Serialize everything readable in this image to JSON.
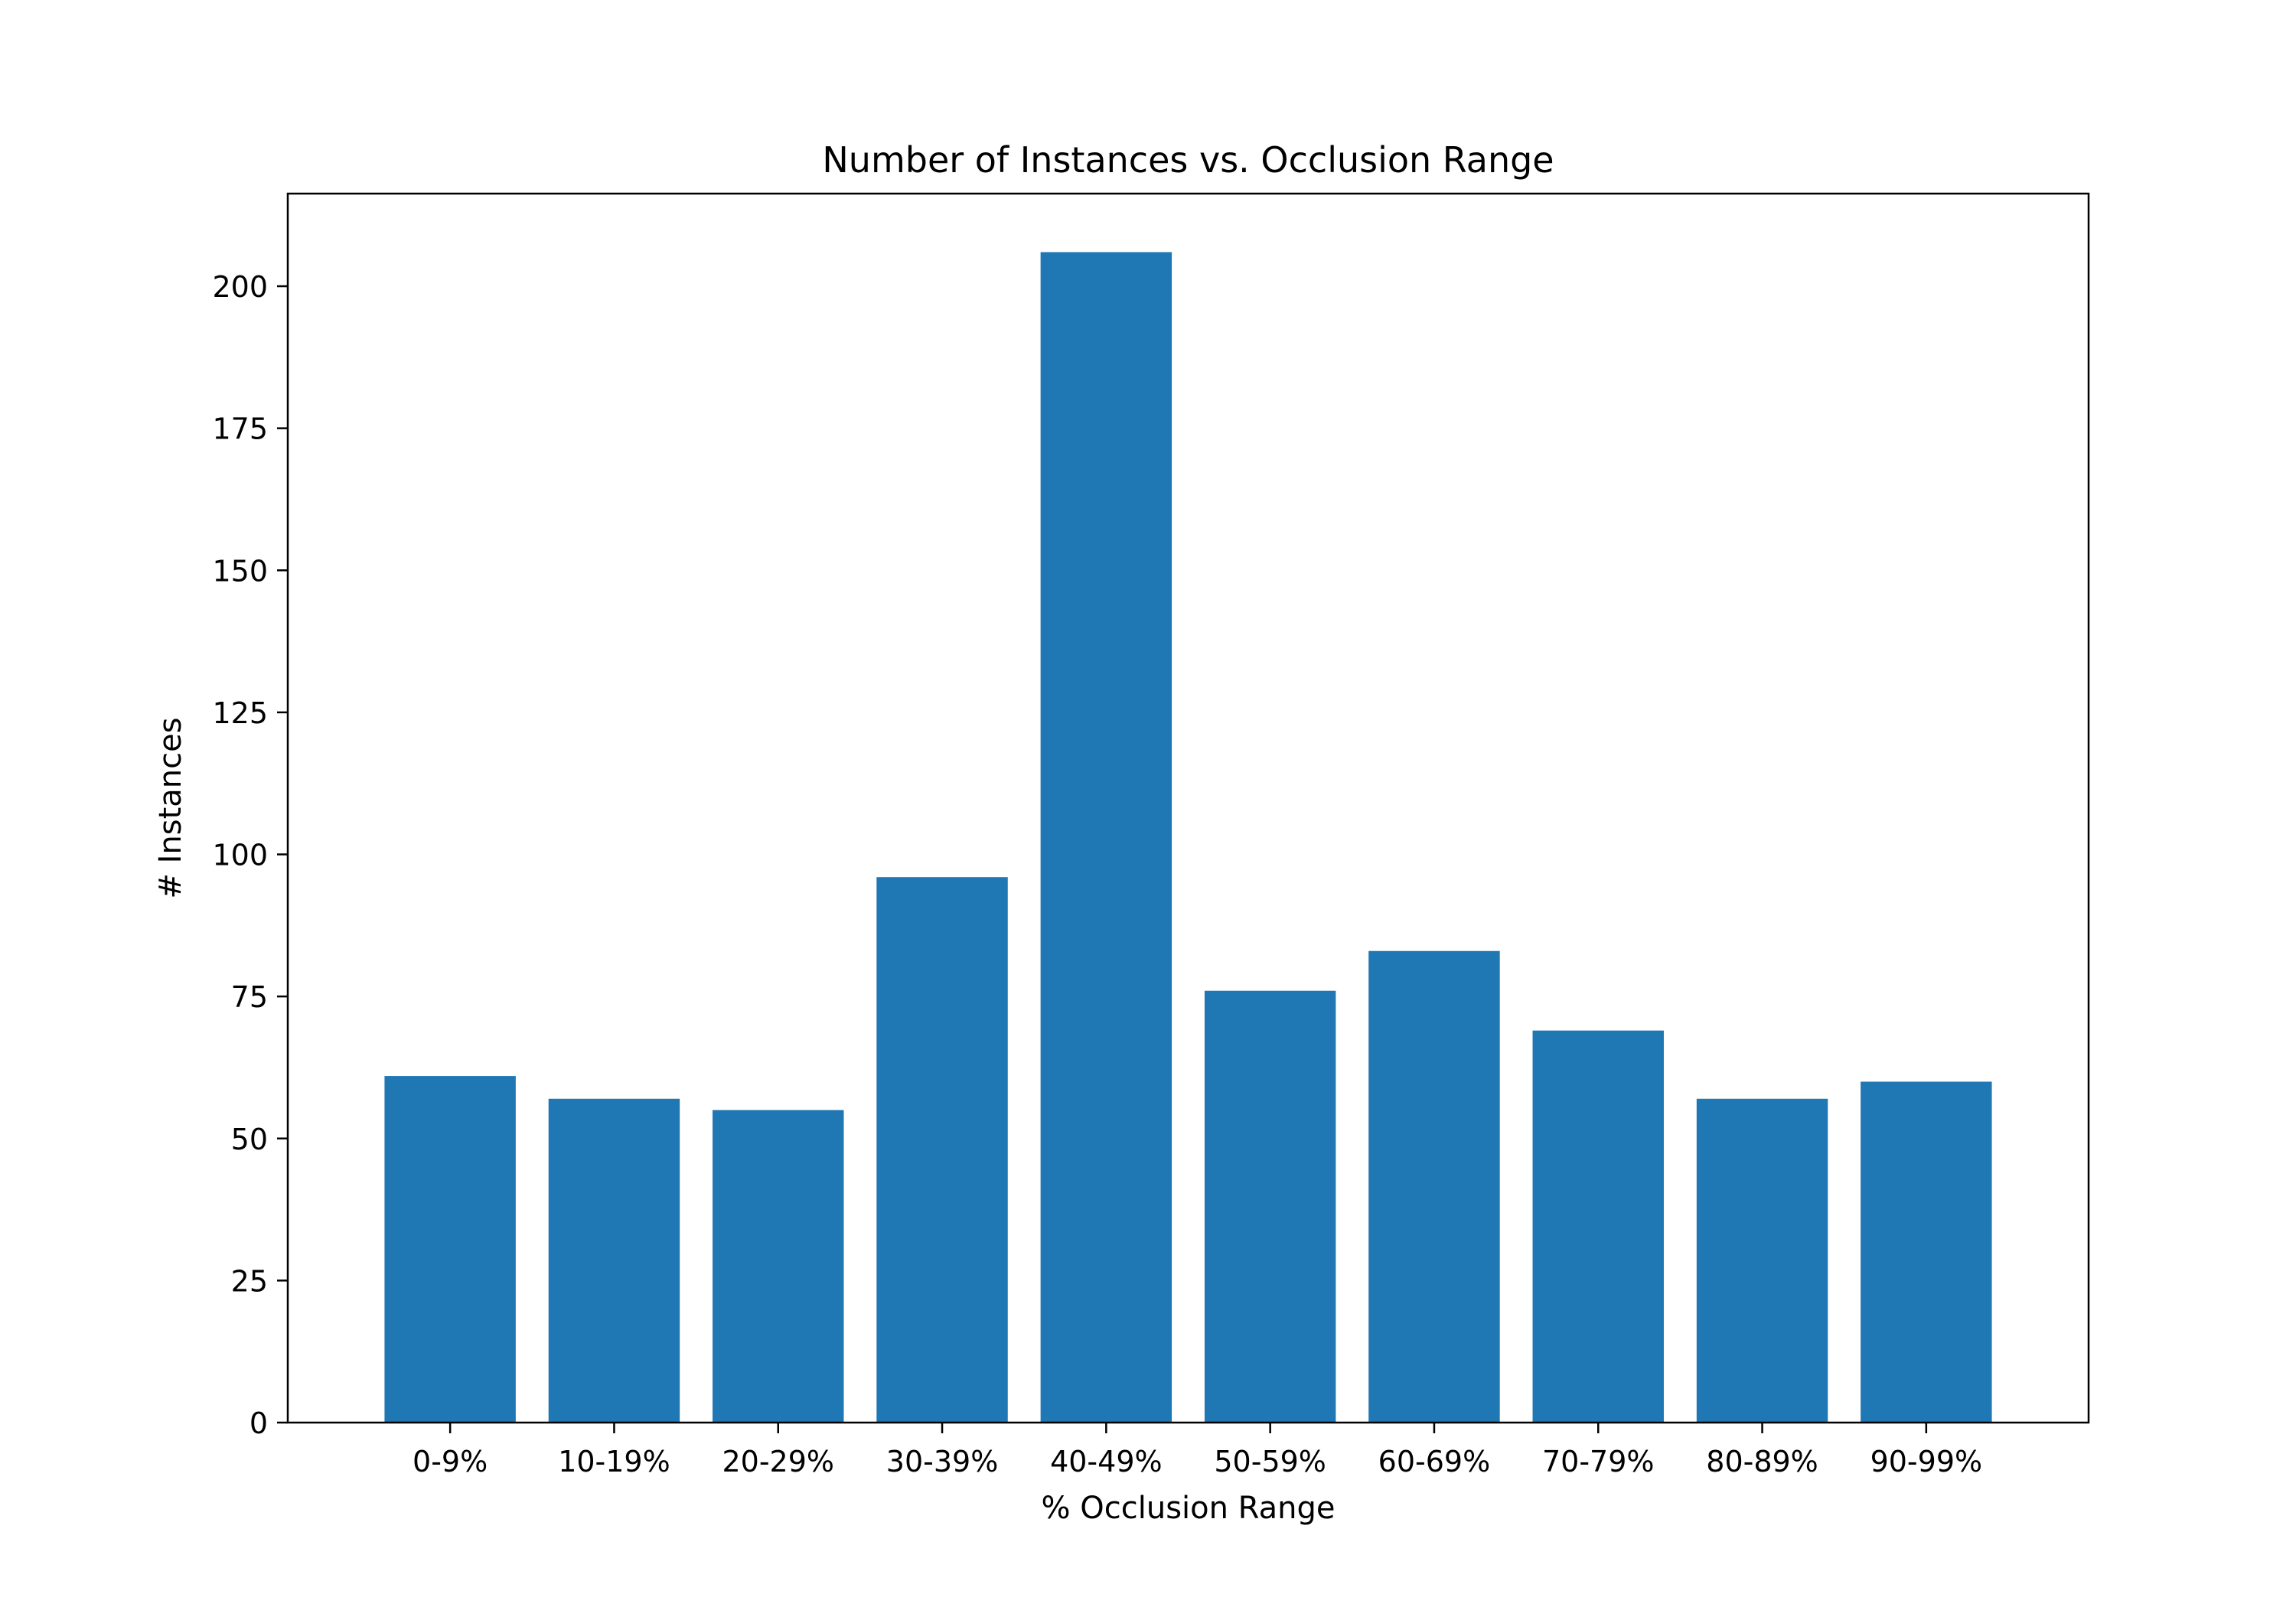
{
  "chart_data": {
    "type": "bar",
    "title": "Number of Instances vs. Occlusion Range",
    "xlabel": "% Occlusion Range",
    "ylabel": "# Instances",
    "categories": [
      "0-9%",
      "10-19%",
      "20-29%",
      "30-39%",
      "40-49%",
      "50-59%",
      "60-69%",
      "70-79%",
      "80-89%",
      "90-99%"
    ],
    "values": [
      61,
      57,
      55,
      96,
      206,
      76,
      83,
      69,
      57,
      60
    ],
    "ylim": [
      0,
      216.3
    ],
    "yticks": [
      0,
      25,
      50,
      75,
      100,
      125,
      150,
      175,
      200
    ],
    "grid": false,
    "legend": "none",
    "bar_color": "#1f77b4"
  }
}
